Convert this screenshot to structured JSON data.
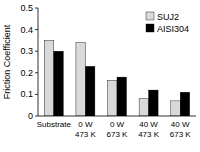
{
  "chart_data": {
    "type": "bar",
    "ylabel": "Friction Coefficient",
    "categories": [
      "Substrate",
      "0 W\n473 K",
      "0 W\n673 K",
      "40 W\n473 K",
      "40 W\n673 K"
    ],
    "series": [
      {
        "name": "SUJ2",
        "color": "#d9d9d9",
        "values": [
          0.35,
          0.34,
          0.165,
          0.08,
          0.07
        ]
      },
      {
        "name": "AISI304",
        "color": "#000000",
        "values": [
          0.3,
          0.23,
          0.18,
          0.12,
          0.11
        ]
      }
    ],
    "ylim": [
      0,
      0.5
    ],
    "yticks": [
      0,
      0.1,
      0.2,
      0.3,
      0.4,
      0.5
    ],
    "grid": false,
    "legend": "upper right"
  }
}
